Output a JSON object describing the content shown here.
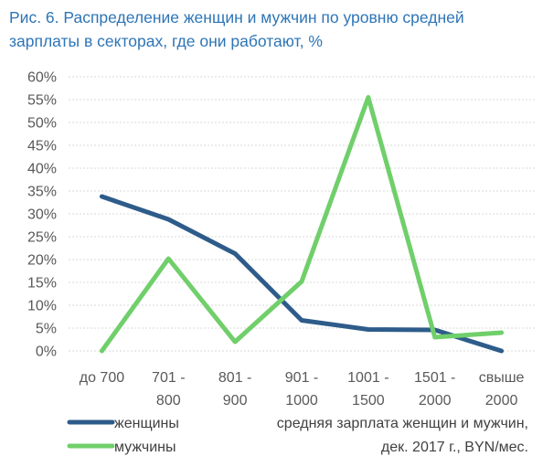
{
  "chart_data": {
    "type": "line",
    "title": "Рис. 6. Распределение женщин и мужчин по уровню средней зарплаты в секторах, где они работают, %",
    "categories": [
      [
        "до 700",
        ""
      ],
      [
        "701 -",
        "800"
      ],
      [
        "801 -",
        "900"
      ],
      [
        "901 -",
        "1000"
      ],
      [
        "1001 -",
        "1500"
      ],
      [
        "1501 -",
        "2000"
      ],
      [
        "свыше",
        "2000"
      ]
    ],
    "y_ticks": [
      "0%",
      "5%",
      "10%",
      "15%",
      "20%",
      "25%",
      "30%",
      "35%",
      "40%",
      "45%",
      "50%",
      "55%",
      "60%"
    ],
    "ylim": [
      0,
      60
    ],
    "grid": true,
    "series": [
      {
        "name": "женщины",
        "color": "#2E5C8A",
        "values": [
          33.8,
          28.8,
          21.3,
          6.7,
          4.7,
          4.6,
          0.0
        ]
      },
      {
        "name": "мужчины",
        "color": "#70CF6A",
        "values": [
          0.0,
          20.2,
          2.0,
          15.2,
          55.5,
          3.0,
          4.0
        ]
      }
    ],
    "xlabel": [
      "средняя зарплата женщин и мужчин,",
      "дек. 2017 г., BYN/мес."
    ],
    "legend_position": "bottom-left"
  }
}
